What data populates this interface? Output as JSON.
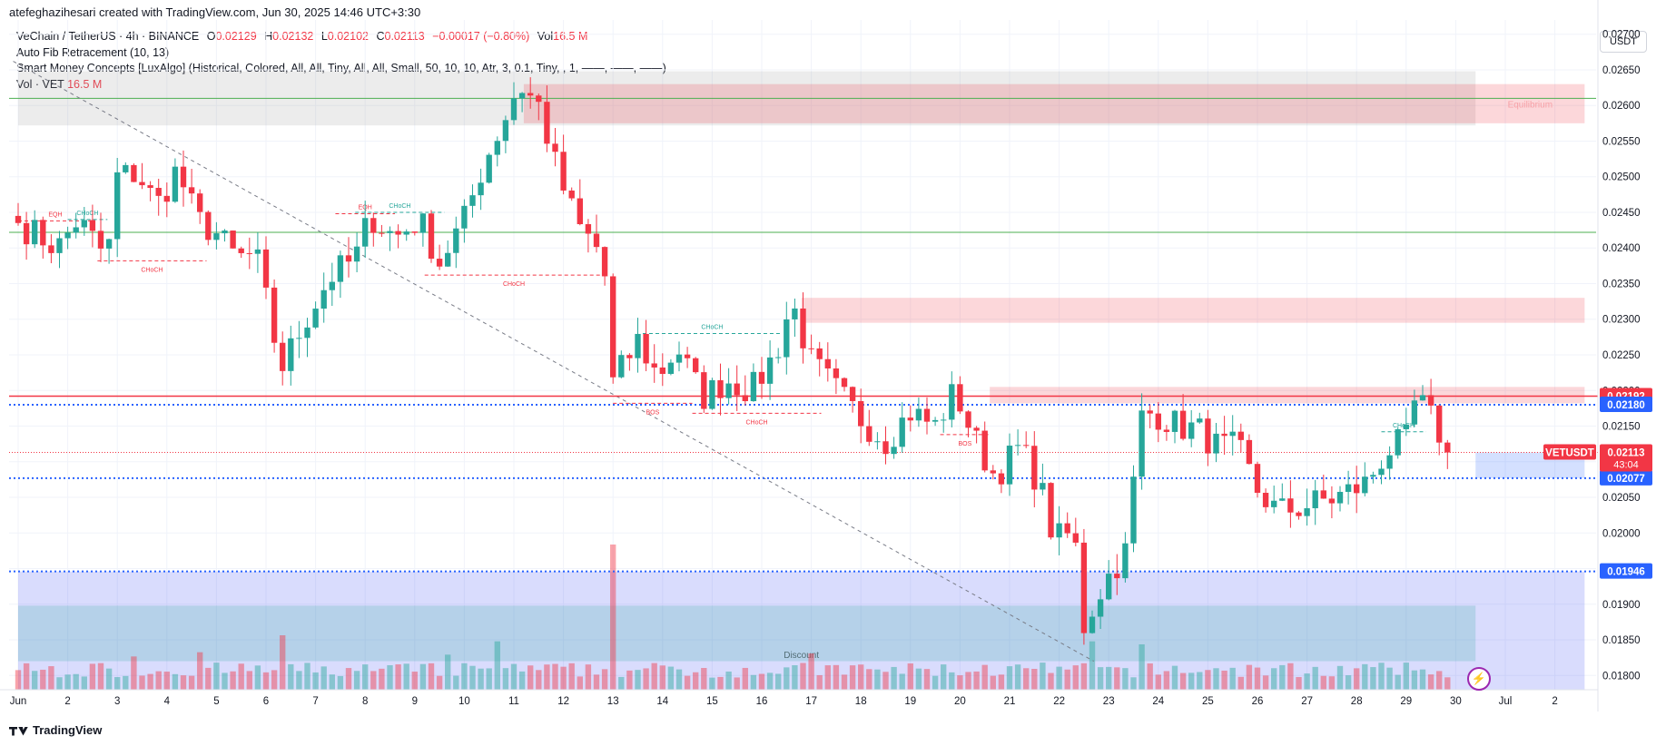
{
  "header": {
    "title": "atefeghazihesari created with TradingView.com, Jun 30, 2025 14:46 UTC+3:30"
  },
  "legend": {
    "symbol": "VeChain / TetherUS · 4h · BINANCE",
    "o_label": "O",
    "o_val": "0.02129",
    "h_label": "H",
    "h_val": "0.02132",
    "l_label": "L",
    "l_val": "0.02102",
    "c_label": "C",
    "c_val": "0.02113",
    "change": "−0.00017 (−0.80%)",
    "vol_label": "Vol",
    "vol_val": "16.5 M",
    "indicator1": "Auto Fib Retracement (10, 13)",
    "indicator2": "Smart Money Concepts [LuxAlgo] (Historical, Colored, All, All, Tiny, All, All, Small, 50, 10, 10, Atr, 3, 0.1, Tiny, , 1, ——, ——, ——)",
    "indicator3_label": "Vol · VET",
    "indicator3_val": "16.5 M"
  },
  "currency": "USDT",
  "footer": {
    "brand": "TradingView"
  },
  "colors": {
    "up": "#26a69a",
    "down": "#f23645",
    "dash": "#2962ff"
  },
  "chart_data": {
    "type": "candlestick",
    "interval": "4h",
    "ylim": [
      0.0178,
      0.0272
    ],
    "y_ticks": [
      "0.02700",
      "0.02650",
      "0.02600",
      "0.02550",
      "0.02500",
      "0.02450",
      "0.02400",
      "0.02350",
      "0.02300",
      "0.02250",
      "0.02200",
      "0.02150",
      "0.02100",
      "0.02050",
      "0.02000",
      "0.01950",
      "0.01900",
      "0.01850",
      "0.01800"
    ],
    "x_labels": [
      {
        "d": 0,
        "t": "Jun"
      },
      {
        "d": 1,
        "t": "2"
      },
      {
        "d": 2,
        "t": "3"
      },
      {
        "d": 3,
        "t": "4"
      },
      {
        "d": 4,
        "t": "5"
      },
      {
        "d": 5,
        "t": "6"
      },
      {
        "d": 6,
        "t": "7"
      },
      {
        "d": 7,
        "t": "8"
      },
      {
        "d": 8,
        "t": "9"
      },
      {
        "d": 9,
        "t": "10"
      },
      {
        "d": 10,
        "t": "11"
      },
      {
        "d": 11,
        "t": "12"
      },
      {
        "d": 12,
        "t": "13"
      },
      {
        "d": 13,
        "t": "14"
      },
      {
        "d": 14,
        "t": "15"
      },
      {
        "d": 15,
        "t": "16"
      },
      {
        "d": 16,
        "t": "17"
      },
      {
        "d": 17,
        "t": "18"
      },
      {
        "d": 18,
        "t": "19"
      },
      {
        "d": 19,
        "t": "20"
      },
      {
        "d": 20,
        "t": "21"
      },
      {
        "d": 21,
        "t": "22"
      },
      {
        "d": 22,
        "t": "23"
      },
      {
        "d": 23,
        "t": "24"
      },
      {
        "d": 24,
        "t": "25"
      },
      {
        "d": 25,
        "t": "26"
      },
      {
        "d": 26,
        "t": "27"
      },
      {
        "d": 27,
        "t": "28"
      },
      {
        "d": 28,
        "t": "29"
      },
      {
        "d": 29,
        "t": "30"
      },
      {
        "d": 30,
        "t": "Jul"
      },
      {
        "d": 31,
        "t": "2"
      }
    ],
    "anchors": [
      [
        0.0,
        0.02435
      ],
      [
        0.8,
        0.024
      ],
      [
        1.2,
        0.0244
      ],
      [
        1.8,
        0.02385
      ],
      [
        2.0,
        0.025
      ],
      [
        2.4,
        0.02505
      ],
      [
        2.8,
        0.0246
      ],
      [
        3.2,
        0.0251
      ],
      [
        3.6,
        0.0244
      ],
      [
        4.0,
        0.0242
      ],
      [
        4.4,
        0.02385
      ],
      [
        4.8,
        0.0239
      ],
      [
        5.3,
        0.0223
      ],
      [
        5.8,
        0.023
      ],
      [
        6.3,
        0.0236
      ],
      [
        6.8,
        0.02385
      ],
      [
        7.1,
        0.02445
      ],
      [
        7.6,
        0.02415
      ],
      [
        8.1,
        0.0244
      ],
      [
        8.5,
        0.0238
      ],
      [
        9.0,
        0.0244
      ],
      [
        9.4,
        0.0252
      ],
      [
        9.8,
        0.0258
      ],
      [
        10.1,
        0.0263
      ],
      [
        10.5,
        0.026
      ],
      [
        10.9,
        0.025
      ],
      [
        11.3,
        0.0243
      ],
      [
        11.8,
        0.0239
      ],
      [
        12.0,
        0.0221
      ],
      [
        12.5,
        0.0227
      ],
      [
        12.9,
        0.0222
      ],
      [
        13.3,
        0.0226
      ],
      [
        13.8,
        0.0219
      ],
      [
        14.3,
        0.02215
      ],
      [
        14.8,
        0.022
      ],
      [
        15.3,
        0.02255
      ],
      [
        15.6,
        0.02325
      ],
      [
        16.0,
        0.0224
      ],
      [
        16.5,
        0.022
      ],
      [
        17.0,
        0.0216
      ],
      [
        17.5,
        0.0213
      ],
      [
        18.0,
        0.0217
      ],
      [
        18.5,
        0.0215
      ],
      [
        18.9,
        0.022
      ],
      [
        19.3,
        0.0213
      ],
      [
        19.7,
        0.0208
      ],
      [
        20.2,
        0.0212
      ],
      [
        20.6,
        0.0207
      ],
      [
        20.9,
        0.0199
      ],
      [
        21.3,
        0.02
      ],
      [
        21.5,
        0.0187
      ],
      [
        21.9,
        0.0193
      ],
      [
        22.4,
        0.0198
      ],
      [
        22.6,
        0.0216
      ],
      [
        22.9,
        0.0217
      ],
      [
        23.4,
        0.0215
      ],
      [
        23.8,
        0.02145
      ],
      [
        24.2,
        0.0212
      ],
      [
        24.6,
        0.0212
      ],
      [
        25.0,
        0.0206
      ],
      [
        25.4,
        0.0203
      ],
      [
        25.8,
        0.02035
      ],
      [
        26.3,
        0.02045
      ],
      [
        26.6,
        0.0205
      ],
      [
        27.2,
        0.0207
      ],
      [
        27.6,
        0.02115
      ],
      [
        28.0,
        0.0213
      ],
      [
        28.2,
        0.0219
      ],
      [
        28.5,
        0.0216
      ],
      [
        28.9,
        0.02113
      ]
    ],
    "volume_ylim": [
      0,
      240
    ],
    "volume_spikes": [
      [
        12.0,
        240
      ],
      [
        5.3,
        90
      ],
      [
        21.6,
        80
      ],
      [
        22.6,
        75
      ],
      [
        9.6,
        80
      ],
      [
        2.4,
        55
      ],
      [
        16.0,
        60
      ],
      [
        3.6,
        62
      ],
      [
        8.6,
        58
      ]
    ],
    "price_lines": [
      {
        "price": 0.02192,
        "label": "0.02192",
        "color": "#f23645",
        "style": "solid"
      },
      {
        "price": 0.0218,
        "label": "0.02180",
        "color": "#2962ff",
        "style": "dotted"
      },
      {
        "price": 0.02077,
        "label": "0.02077",
        "color": "#2962ff",
        "style": "dotted"
      },
      {
        "price": 0.01946,
        "label": "0.01946",
        "color": "#2962ff",
        "style": "dotted"
      }
    ],
    "current": {
      "symbol": "VETUSDT",
      "price": "0.02113",
      "countdown": "43:04",
      "value": 0.02113
    },
    "fib_lines": [
      0.0261,
      0.02422
    ],
    "zones": [
      {
        "d0": 0.0,
        "d1": 29.4,
        "p0": 0.02572,
        "p1": 0.02648,
        "color": "#9e9e9e"
      },
      {
        "d0": 10.2,
        "d1": 29.4,
        "p0": 0.02575,
        "p1": 0.0263,
        "color": "#f23645"
      },
      {
        "d0": 29.4,
        "d1": 31.6,
        "p0": 0.02575,
        "p1": 0.0263,
        "color": "#f23645",
        "label": "Equilibrium"
      },
      {
        "d0": 15.8,
        "d1": 31.6,
        "p0": 0.02295,
        "p1": 0.0233,
        "color": "#f23645"
      },
      {
        "d0": 19.6,
        "d1": 31.6,
        "p0": 0.02182,
        "p1": 0.02205,
        "color": "#f23645"
      },
      {
        "d0": 29.4,
        "d1": 31.6,
        "p0": 0.02077,
        "p1": 0.02113,
        "color": "#2962ff"
      },
      {
        "d0": 0.0,
        "d1": 31.6,
        "p0": 0.0178,
        "p1": 0.01946,
        "color": "#3f51f5",
        "label": "Discount"
      },
      {
        "d0": 0.0,
        "d1": 29.4,
        "p0": 0.0182,
        "p1": 0.01898,
        "color": "#26a69a"
      }
    ],
    "structure": [
      {
        "d0": 0.0,
        "d1": 1.5,
        "p": 0.02438,
        "label": "EQH",
        "color": "#f23645",
        "side": "up"
      },
      {
        "d0": 1.0,
        "d1": 1.8,
        "p": 0.0244,
        "label": "CHoCH",
        "color": "#26a69a",
        "side": "up"
      },
      {
        "d0": 1.6,
        "d1": 3.8,
        "p": 0.02382,
        "label": "CHoCH",
        "color": "#f23645",
        "side": "down"
      },
      {
        "d0": 6.4,
        "d1": 7.6,
        "p": 0.02448,
        "label": "EQH",
        "color": "#f23645",
        "side": "up"
      },
      {
        "d0": 6.8,
        "d1": 8.6,
        "p": 0.0245,
        "label": "CHoCH",
        "color": "#26a69a",
        "side": "up"
      },
      {
        "d0": 8.2,
        "d1": 11.8,
        "p": 0.02362,
        "label": "CHoCH",
        "color": "#f23645",
        "side": "down"
      },
      {
        "d0": 12.6,
        "d1": 15.4,
        "p": 0.0228,
        "label": "CHoCH",
        "color": "#26a69a",
        "side": "up"
      },
      {
        "d0": 12.0,
        "d1": 13.6,
        "p": 0.02182,
        "label": "BOS",
        "color": "#f23645",
        "side": "down"
      },
      {
        "d0": 13.6,
        "d1": 16.2,
        "p": 0.02168,
        "label": "CHoCH",
        "color": "#f23645",
        "side": "down"
      },
      {
        "d0": 18.6,
        "d1": 19.6,
        "p": 0.02138,
        "label": "BOS",
        "color": "#f23645",
        "side": "down"
      },
      {
        "d0": 27.5,
        "d1": 28.4,
        "p": 0.02142,
        "label": "CHoCH",
        "color": "#26a69a",
        "side": "up"
      }
    ],
    "trendline": {
      "d0": -0.1,
      "p0": 0.02662,
      "d1": 21.7,
      "p1": 0.0182
    }
  }
}
